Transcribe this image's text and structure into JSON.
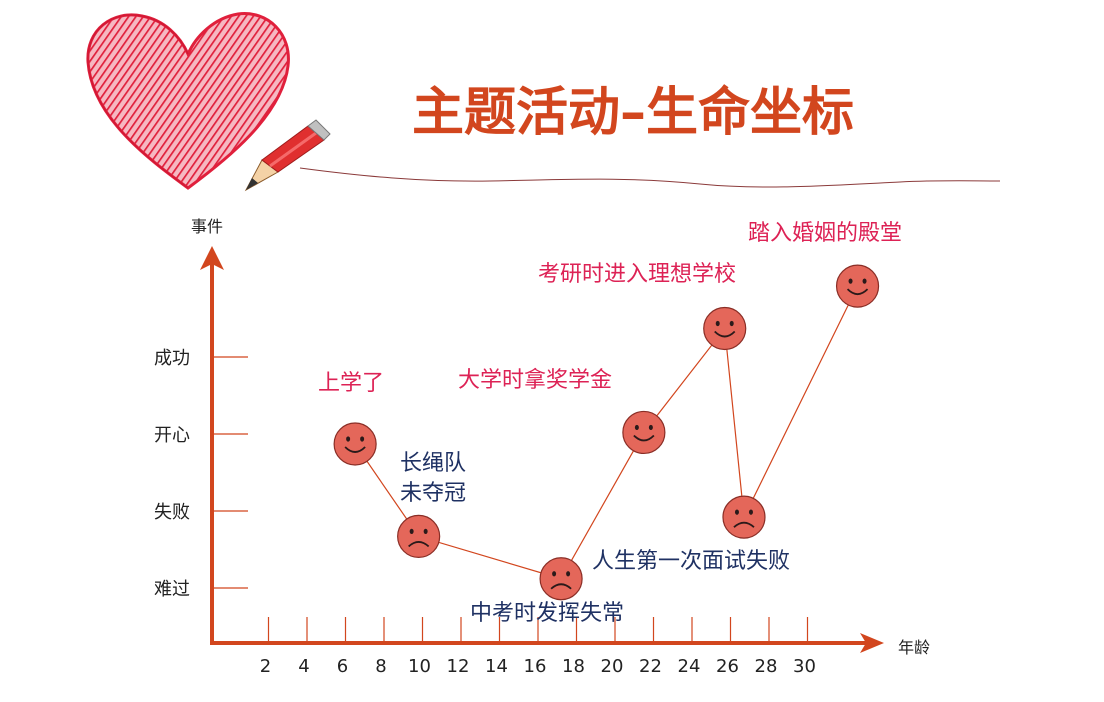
{
  "title": "主题活动–生命坐标",
  "colors": {
    "title": "#d2461e",
    "axis": "#d2461e",
    "line": "#d2461e",
    "face": "#e4675a",
    "face_stroke": "#8a2e26",
    "positive_label": "#dd2255",
    "negative_label": "#1f3163",
    "tick_label": "#222222",
    "heart": "#e0203c"
  },
  "chart_data": {
    "type": "line",
    "xlabel": "年龄",
    "ylabel": "事件",
    "x_ticks": [
      2,
      4,
      6,
      8,
      10,
      12,
      14,
      16,
      18,
      20,
      22,
      24,
      26,
      28,
      30
    ],
    "y_categories": [
      "难过",
      "失败",
      "开心",
      "成功"
    ],
    "xlim": [
      0,
      35
    ],
    "ylim": [
      0,
      5
    ],
    "points": [
      {
        "x": 6.5,
        "y": 2.0,
        "mood": "happy",
        "label": "上学了",
        "tone": "positive"
      },
      {
        "x": 9.8,
        "y": 0.8,
        "mood": "sad",
        "label_lines": [
          "长绳队",
          "未夺冠"
        ],
        "tone": "negative"
      },
      {
        "x": 17.2,
        "y": 0.25,
        "mood": "sad",
        "label": "中考时发挥失常",
        "tone": "negative"
      },
      {
        "x": 21.5,
        "y": 2.15,
        "mood": "happy",
        "label": "大学时拿奖学金",
        "tone": "positive"
      },
      {
        "x": 25.7,
        "y": 3.5,
        "mood": "happy",
        "label": "考研时进入理想学校",
        "tone": "positive"
      },
      {
        "x": 26.7,
        "y": 1.05,
        "mood": "sad",
        "label": "人生第一次面试失败",
        "tone": "negative"
      },
      {
        "x": 32.6,
        "y": 4.05,
        "mood": "happy",
        "label": "踏入婚姻的殿堂",
        "tone": "positive"
      }
    ]
  }
}
